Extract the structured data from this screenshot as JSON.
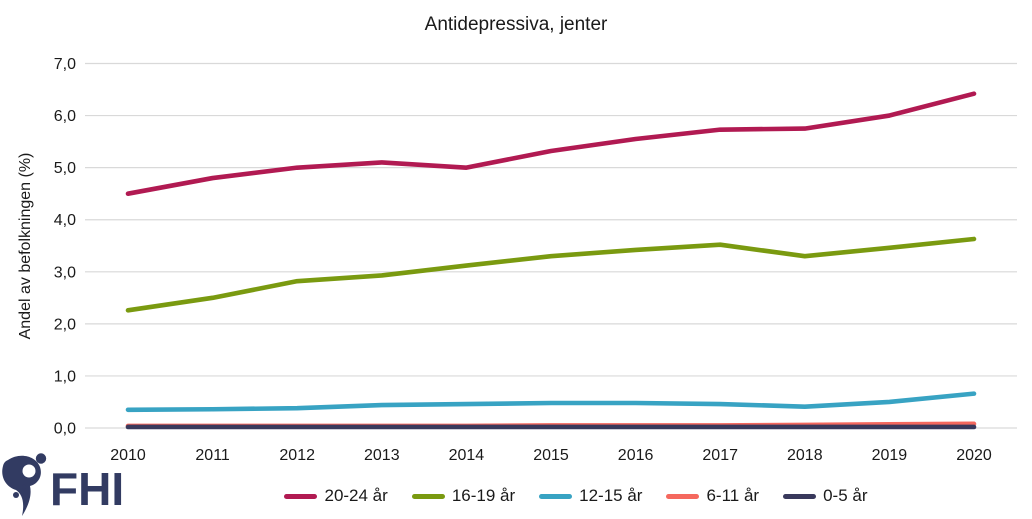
{
  "chart_data": {
    "type": "line",
    "title": "Antidepressiva, jenter",
    "xlabel": "",
    "ylabel": "Andel av befolkningen (%)",
    "x": [
      "2010",
      "2011",
      "2012",
      "2013",
      "2014",
      "2015",
      "2016",
      "2017",
      "2018",
      "2019",
      "2020"
    ],
    "series": [
      {
        "name": "20-24 år",
        "color": "#b11a52",
        "values": [
          4.5,
          4.8,
          5.0,
          5.1,
          5.0,
          5.32,
          5.55,
          5.73,
          5.75,
          6.0,
          6.42
        ]
      },
      {
        "name": "16-19 år",
        "color": "#7a9a10",
        "values": [
          2.26,
          2.5,
          2.82,
          2.93,
          3.12,
          3.3,
          3.42,
          3.52,
          3.3,
          3.46,
          3.63
        ]
      },
      {
        "name": "12-15 år",
        "color": "#38a3c3",
        "values": [
          0.35,
          0.36,
          0.38,
          0.44,
          0.46,
          0.48,
          0.48,
          0.46,
          0.41,
          0.5,
          0.66
        ]
      },
      {
        "name": "6-11 år",
        "color": "#f5685e",
        "values": [
          0.04,
          0.04,
          0.04,
          0.04,
          0.04,
          0.05,
          0.05,
          0.05,
          0.06,
          0.07,
          0.08
        ]
      },
      {
        "name": "0-5 år",
        "color": "#39395c",
        "values": [
          0.02,
          0.02,
          0.02,
          0.02,
          0.02,
          0.02,
          0.02,
          0.02,
          0.02,
          0.02,
          0.02
        ]
      }
    ],
    "ylim": [
      0,
      7
    ],
    "yticks": [
      {
        "value": 0,
        "label": "0,0"
      },
      {
        "value": 1,
        "label": "1,0"
      },
      {
        "value": 2,
        "label": "2,0"
      },
      {
        "value": 3,
        "label": "3,0"
      },
      {
        "value": 4,
        "label": "4,0"
      },
      {
        "value": 5,
        "label": "5,0"
      },
      {
        "value": 6,
        "label": "6,0"
      },
      {
        "value": 7,
        "label": "7,0"
      }
    ],
    "grid": "horizontal",
    "legend_position": "bottom"
  },
  "branding": {
    "logo_text": "FHI",
    "logo_color": "#323b62"
  },
  "colors": {
    "grid": "#d9d9d9",
    "text": "#1a1a1a"
  }
}
